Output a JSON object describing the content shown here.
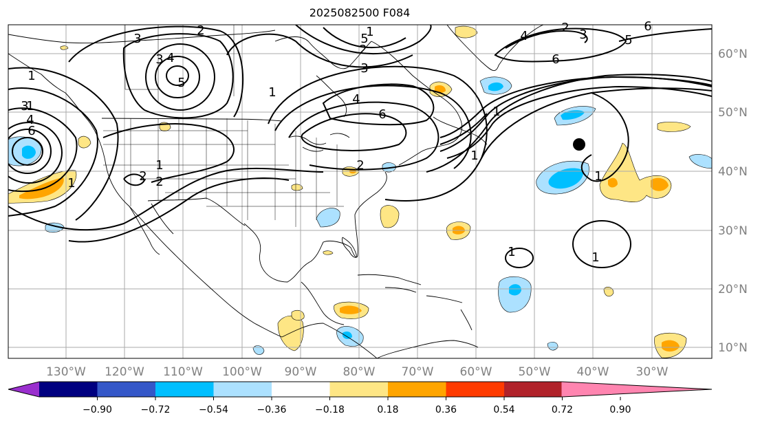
{
  "map": {
    "title": "2025082500 F084",
    "lon_labels": [
      "130°W",
      "120°W",
      "110°W",
      "100°W",
      "90°W",
      "80°W",
      "70°W",
      "60°W",
      "50°W",
      "40°W",
      "30°W"
    ],
    "lat_labels": [
      "60°N",
      "50°N",
      "40°N",
      "30°N",
      "20°N",
      "10°N"
    ],
    "contour_labels": [
      "3",
      "2",
      "3",
      "4",
      "5",
      "1",
      "1",
      "3",
      "4",
      "6",
      "1",
      "1",
      "3",
      "2",
      "2",
      "1",
      "4",
      "6",
      "5",
      "2",
      "1",
      "2",
      "3",
      "4",
      "6",
      "6",
      "5",
      "1",
      "1",
      "1",
      "1",
      "1",
      "2"
    ],
    "marker": "storm-position-dot"
  },
  "colorbar": {
    "ticks": [
      "−0.90",
      "−0.72",
      "−0.54",
      "−0.36",
      "−0.18",
      "0.18",
      "0.36",
      "0.54",
      "0.72",
      "0.90"
    ],
    "colors": [
      "#9a2fce",
      "#000080",
      "#3457c8",
      "#00bfff",
      "#ace1ff",
      "#ffffff",
      "#fee685",
      "#ffa500",
      "#ff3b00",
      "#b0222a",
      "#ff85b0"
    ]
  },
  "fill_colors": {
    "light_blue": "#ace1ff",
    "blue": "#00bfff",
    "yellow": "#fee685",
    "orange": "#ffa500"
  }
}
